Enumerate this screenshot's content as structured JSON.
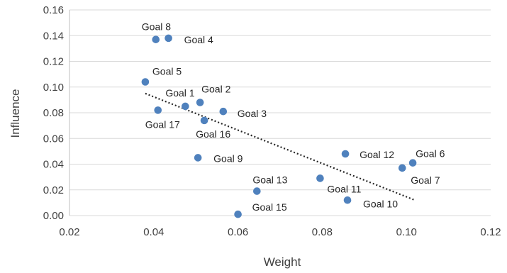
{
  "chart_data": {
    "type": "scatter",
    "xlabel": "Weight",
    "ylabel": "Influence",
    "xlim": [
      0.02,
      0.12
    ],
    "ylim": [
      0.0,
      0.16
    ],
    "x_ticks": [
      "0.02",
      "0.04",
      "0.06",
      "0.08",
      "0.10",
      "0.12"
    ],
    "y_ticks": [
      "0.00",
      "0.02",
      "0.04",
      "0.06",
      "0.08",
      "0.10",
      "0.12",
      "0.14",
      "0.16"
    ],
    "grid": "horizontal",
    "legend": "none",
    "marker_color": "#4F81BD",
    "trendline": {
      "style": "dotted",
      "color": "#262626",
      "x": [
        0.038,
        0.102
      ],
      "y": [
        0.095,
        0.012
      ]
    },
    "points": [
      {
        "label": "Goal 1",
        "x": 0.0475,
        "y": 0.085
      },
      {
        "label": "Goal 2",
        "x": 0.051,
        "y": 0.088
      },
      {
        "label": "Goal 3",
        "x": 0.0565,
        "y": 0.081
      },
      {
        "label": "Goal 4",
        "x": 0.0435,
        "y": 0.138
      },
      {
        "label": "Goal 5",
        "x": 0.038,
        "y": 0.104
      },
      {
        "label": "Goal 6",
        "x": 0.1015,
        "y": 0.041
      },
      {
        "label": "Goal 7",
        "x": 0.099,
        "y": 0.037
      },
      {
        "label": "Goal 8",
        "x": 0.0405,
        "y": 0.137
      },
      {
        "label": "Goal 9",
        "x": 0.0505,
        "y": 0.045
      },
      {
        "label": "Goal 10",
        "x": 0.086,
        "y": 0.012
      },
      {
        "label": "Goal 11",
        "x": 0.0795,
        "y": 0.029
      },
      {
        "label": "Goal 12",
        "x": 0.0855,
        "y": 0.048
      },
      {
        "label": "Goal 13",
        "x": 0.0645,
        "y": 0.019
      },
      {
        "label": "Goal 15",
        "x": 0.06,
        "y": 0.001
      },
      {
        "label": "Goal 16",
        "x": 0.052,
        "y": 0.074
      },
      {
        "label": "Goal 17",
        "x": 0.041,
        "y": 0.082
      }
    ]
  }
}
